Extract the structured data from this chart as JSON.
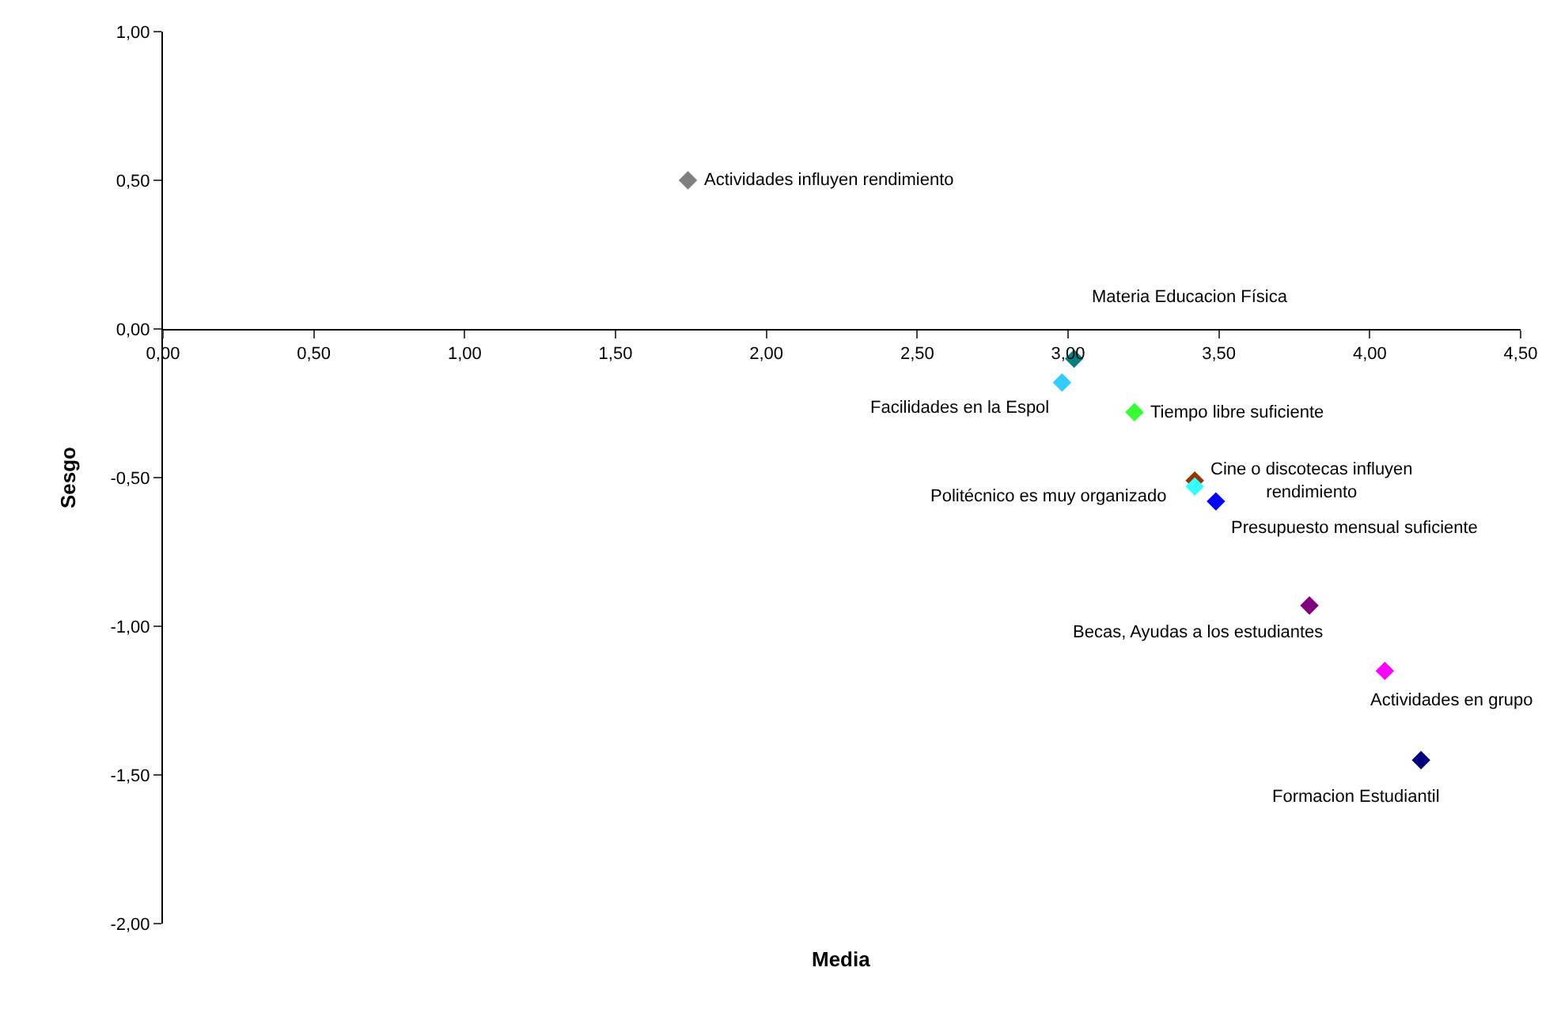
{
  "chart_data": {
    "type": "scatter",
    "xlabel": "Media",
    "ylabel": "Sesgo",
    "marker": "diamond",
    "legend": false,
    "xlim": [
      0,
      4.5
    ],
    "ylim": [
      -2,
      1
    ],
    "xticks": [
      {
        "value": 0,
        "label": "0,00"
      },
      {
        "value": 0.5,
        "label": "0,50"
      },
      {
        "value": 1,
        "label": "1,00"
      },
      {
        "value": 1.5,
        "label": "1,50"
      },
      {
        "value": 2,
        "label": "2,00"
      },
      {
        "value": 2.5,
        "label": "2,50"
      },
      {
        "value": 3,
        "label": "3,00"
      },
      {
        "value": 3.5,
        "label": "3,50"
      },
      {
        "value": 4,
        "label": "4,00"
      },
      {
        "value": 4.5,
        "label": "4,50"
      }
    ],
    "yticks": [
      {
        "value": -2,
        "label": "-2,00"
      },
      {
        "value": -1.5,
        "label": "-1,50"
      },
      {
        "value": -1,
        "label": "-1,00"
      },
      {
        "value": -0.5,
        "label": "-0,50"
      },
      {
        "value": 0,
        "label": "0,00"
      },
      {
        "value": 0.5,
        "label": "0,50"
      },
      {
        "value": 1,
        "label": "1,00"
      }
    ],
    "series": [
      {
        "name": "Actividades influyen rendimiento",
        "color": "#808080",
        "x": [
          1.74
        ],
        "values": [
          0.5
        ]
      },
      {
        "name": "Materia Educacion Física",
        "color": "#008080",
        "x": [
          3.02
        ],
        "values": [
          -0.1
        ]
      },
      {
        "name": "Facilidades en la Espol",
        "color": "#33ccff",
        "x": [
          2.98
        ],
        "values": [
          -0.18
        ]
      },
      {
        "name": "Tiempo libre suficiente",
        "color": "#33ff33",
        "x": [
          3.22
        ],
        "values": [
          -0.28
        ]
      },
      {
        "name": "Cine o discotecas influyen rendimiento",
        "color": "#993300",
        "x": [
          3.42
        ],
        "values": [
          -0.51
        ]
      },
      {
        "name": "Politécnico es muy organizado",
        "color": "#33ffff",
        "x": [
          3.42
        ],
        "values": [
          -0.53
        ]
      },
      {
        "name": "Presupuesto mensual suficiente",
        "color": "#0000ff",
        "x": [
          3.49
        ],
        "values": [
          -0.58
        ]
      },
      {
        "name": "Becas, Ayudas a los estudiantes",
        "color": "#800080",
        "x": [
          3.8
        ],
        "values": [
          -0.93
        ]
      },
      {
        "name": "Actividades en grupo",
        "color": "#ff00ff",
        "x": [
          4.05
        ],
        "values": [
          -1.15
        ]
      },
      {
        "name": "Formacion Estudiantil",
        "color": "#000080",
        "x": [
          4.17
        ],
        "values": [
          -1.45
        ]
      }
    ]
  }
}
